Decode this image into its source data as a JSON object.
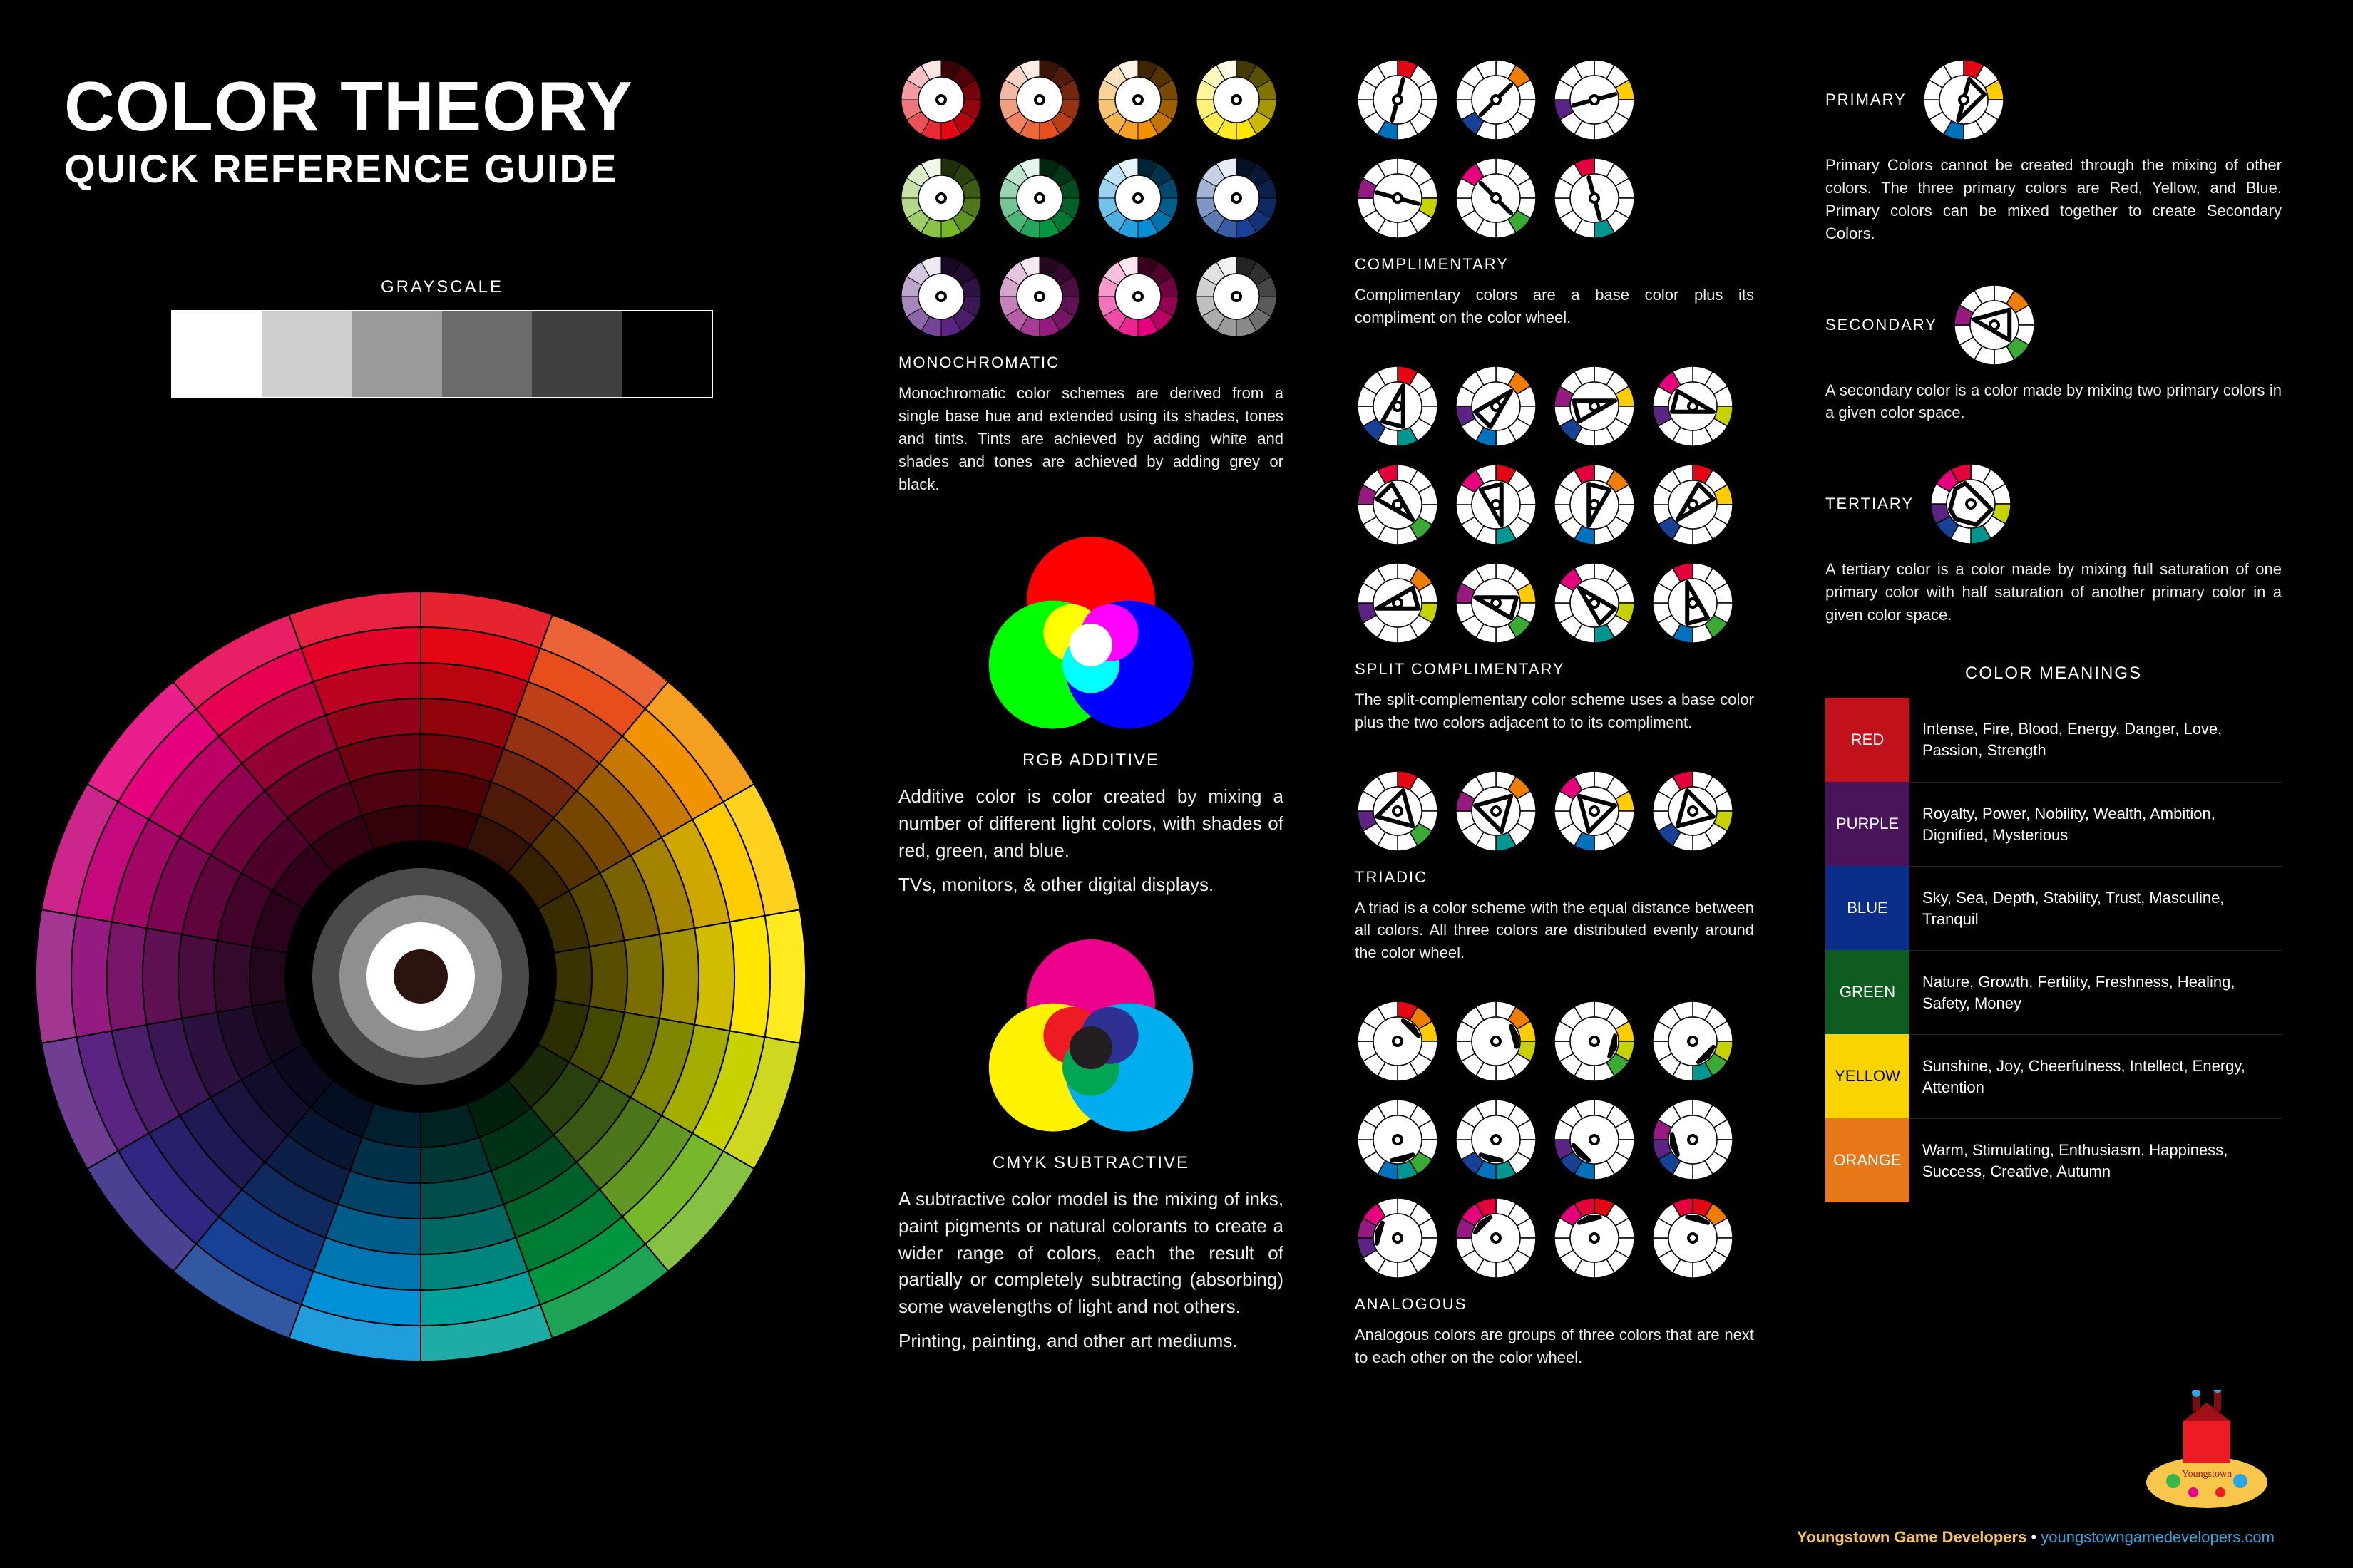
{
  "title": "COLOR THEORY",
  "subtitle": "QUICK REFERENCE GUIDE",
  "grayscale": {
    "label": "GRAYSCALE",
    "swatches": [
      "#ffffff",
      "#cfcfcf",
      "#9a9a9a",
      "#6b6b6b",
      "#3f3f3f",
      "#000000"
    ]
  },
  "wheel": {
    "hues": [
      "#e30613",
      "#e84e1b",
      "#f39200",
      "#fecc00",
      "#ffe600",
      "#c6d300",
      "#76b82a",
      "#009640",
      "#00a19a",
      "#0090d7",
      "#164194",
      "#312783",
      "#5b2483",
      "#951b81",
      "#c5087e",
      "#e6007e",
      "#e50051",
      "#e40428"
    ],
    "rings_lightness": [
      0.22,
      0.34,
      0.48,
      0.64,
      0.82,
      1.0,
      1.12
    ],
    "center_rings": [
      "#000000",
      "#4a4a4a",
      "#8f8f8f",
      "#ffffff",
      "#2b1410"
    ],
    "outer_radius": 540,
    "inner_radius": 190
  },
  "monochromatic": {
    "title": "MONOCHROMATIC",
    "body": "Monochromatic color schemes are derived from a single base hue and extended using its shades, tones and tints. Tints are achieved by adding white and shades and tones are achieved by adding grey or black.",
    "base_hues": [
      "#e30613",
      "#e84e1b",
      "#f39200",
      "#ffe600",
      "#76b82a",
      "#009640",
      "#0090d7",
      "#164194",
      "#5b2483",
      "#951b81",
      "#e6007e",
      "#8a8a8a"
    ]
  },
  "rgb": {
    "title": "RGB ADDITIVE",
    "body1": "Additive color is color created by mixing a number of different light colors, with shades of red, green, and blue.",
    "body2": "TVs, monitors, & other digital displays.",
    "circles": [
      "#ff0000",
      "#00ff00",
      "#0000ff"
    ],
    "overlaps": [
      "#ffff00",
      "#00ffff",
      "#ff00ff",
      "#ffffff"
    ]
  },
  "cmyk": {
    "title": "CMYK SUBTRACTIVE",
    "body1": "A subtractive color model is the mixing of inks, paint pigments or natural colorants to create a wider range of colors, each the result of partially or completely subtracting (absorbing) some wavelengths of light and not others.",
    "body2": "Printing, painting, and other art mediums.",
    "circles": [
      "#ec008c",
      "#fff200",
      "#00aeef"
    ],
    "overlaps": [
      "#ed1c24",
      "#00a651",
      "#2e3192",
      "#231f20"
    ]
  },
  "wheel_palette_12": [
    "#e30613",
    "#ef7d00",
    "#fecc00",
    "#c6d300",
    "#3aaa35",
    "#009690",
    "#0072bc",
    "#164194",
    "#5b2483",
    "#951b81",
    "#e6007e",
    "#e4003a"
  ],
  "schemes": {
    "complimentary": {
      "title": "COMPLIMENTARY",
      "body": "Complimentary colors are a base color plus its compliment on the color wheel.",
      "sets": [
        [
          0,
          6
        ],
        [
          1,
          7
        ],
        [
          2,
          8
        ],
        [
          3,
          9
        ],
        [
          4,
          10
        ],
        [
          5,
          11
        ]
      ]
    },
    "split": {
      "title": "SPLIT COMPLIMENTARY",
      "body": "The split-complementary color scheme uses a base color plus the two colors adjacent to to its compliment.",
      "sets": [
        [
          0,
          5,
          7
        ],
        [
          1,
          6,
          8
        ],
        [
          2,
          7,
          9
        ],
        [
          3,
          8,
          10
        ],
        [
          4,
          9,
          11
        ],
        [
          5,
          10,
          0
        ],
        [
          6,
          11,
          1
        ],
        [
          7,
          0,
          2
        ],
        [
          8,
          1,
          3
        ],
        [
          9,
          2,
          4
        ],
        [
          10,
          3,
          5
        ],
        [
          11,
          4,
          6
        ]
      ]
    },
    "triadic": {
      "title": "TRIADIC",
      "body": "A triad is a color scheme with the equal distance between all colors. All three colors are distributed evenly around the color wheel.",
      "sets": [
        [
          0,
          4,
          8
        ],
        [
          1,
          5,
          9
        ],
        [
          2,
          6,
          10
        ],
        [
          3,
          7,
          11
        ]
      ]
    },
    "analogous": {
      "title": "ANALOGOUS",
      "body": "Analogous colors are groups of three colors that are next to each other on the color wheel.",
      "sets": [
        [
          0,
          1,
          2
        ],
        [
          1,
          2,
          3
        ],
        [
          2,
          3,
          4
        ],
        [
          3,
          4,
          5
        ],
        [
          4,
          5,
          6
        ],
        [
          5,
          6,
          7
        ],
        [
          6,
          7,
          8
        ],
        [
          7,
          8,
          9
        ],
        [
          8,
          9,
          10
        ],
        [
          9,
          10,
          11
        ],
        [
          10,
          11,
          0
        ],
        [
          11,
          0,
          1
        ]
      ]
    }
  },
  "right": {
    "primary": {
      "label": "PRIMARY",
      "body": "Primary Colors cannot be created through the mixing of other colors. The three primary colors are Red, Yellow, and Blue. Primary colors can be mixed together to create Secondary Colors.",
      "highlights": [
        0,
        2,
        6
      ]
    },
    "secondary": {
      "label": "SECONDARY",
      "body": "A secondary color is a color made by mixing two primary colors in a given color space.",
      "highlights": [
        1,
        4,
        9
      ]
    },
    "tertiary": {
      "label": "TERTIARY",
      "body": "A tertiary color is a color made by mixing full saturation of one primary color with half saturation of another primary color in a given color space.",
      "highlights": [
        3,
        5,
        7,
        8,
        10,
        11
      ]
    }
  },
  "meanings": {
    "title": "COLOR MEANINGS",
    "rows": [
      {
        "name": "RED",
        "color": "#c1121c",
        "textcolor": "#ffffff",
        "desc": "Intense, Fire, Blood, Energy, Danger, Love, Passion, Strength"
      },
      {
        "name": "PURPLE",
        "color": "#4a145a",
        "textcolor": "#ffffff",
        "desc": "Royalty, Power, Nobility, Wealth, Ambition, Dignified, Mysterious"
      },
      {
        "name": "BLUE",
        "color": "#0b2e8a",
        "textcolor": "#ffffff",
        "desc": "Sky, Sea, Depth, Stability, Trust, Masculine, Tranquil"
      },
      {
        "name": "GREEN",
        "color": "#0e5c1f",
        "textcolor": "#ffffff",
        "desc": "Nature, Growth, Fertility, Freshness, Healing, Safety, Money"
      },
      {
        "name": "YELLOW",
        "color": "#f9d400",
        "textcolor": "#000000",
        "desc": "Sunshine, Joy, Cheerfulness, Intellect, Energy, Attention"
      },
      {
        "name": "ORANGE",
        "color": "#e77817",
        "textcolor": "#ffffff",
        "desc": "Warm, Stimulating, Enthusiasm, Happiness, Success, Creative, Autumn"
      }
    ]
  },
  "footer": {
    "brand": "Youngstown Game Developers",
    "sep": "  •  ",
    "link": "youngstowngamedevelopers.com"
  }
}
